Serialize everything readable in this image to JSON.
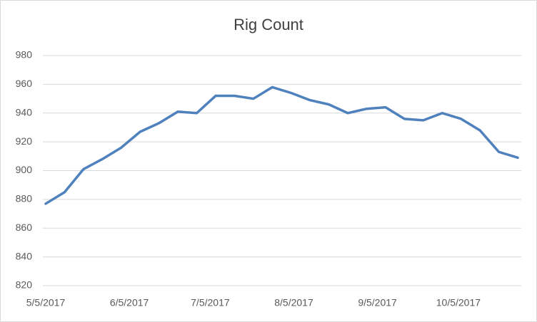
{
  "chart_data": {
    "type": "line",
    "title": "Rig Count",
    "x": [
      "5/5/2017",
      "5/12/2017",
      "5/19/2017",
      "5/26/2017",
      "6/2/2017",
      "6/9/2017",
      "6/16/2017",
      "6/23/2017",
      "6/30/2017",
      "7/7/2017",
      "7/14/2017",
      "7/21/2017",
      "7/28/2017",
      "8/4/2017",
      "8/11/2017",
      "8/18/2017",
      "8/25/2017",
      "9/1/2017",
      "9/8/2017",
      "9/15/2017",
      "9/22/2017",
      "9/29/2017",
      "10/6/2017",
      "10/13/2017",
      "10/20/2017",
      "10/27/2017"
    ],
    "series": [
      {
        "name": "Rig Count",
        "color": "#4f81bd",
        "values": [
          877,
          885,
          901,
          908,
          916,
          927,
          933,
          941,
          940,
          952,
          952,
          950,
          958,
          954,
          949,
          946,
          940,
          943,
          944,
          936,
          935,
          940,
          936,
          928,
          913,
          909
        ]
      }
    ],
    "xlim": [
      "5/5/2017",
      "10/27/2017"
    ],
    "xticks": [
      "5/5/2017",
      "6/5/2017",
      "7/5/2017",
      "8/5/2017",
      "9/5/2017",
      "10/5/2017"
    ],
    "ylim": [
      820,
      980
    ],
    "yticks": [
      820,
      840,
      860,
      880,
      900,
      920,
      940,
      960,
      980
    ],
    "grid": true
  }
}
